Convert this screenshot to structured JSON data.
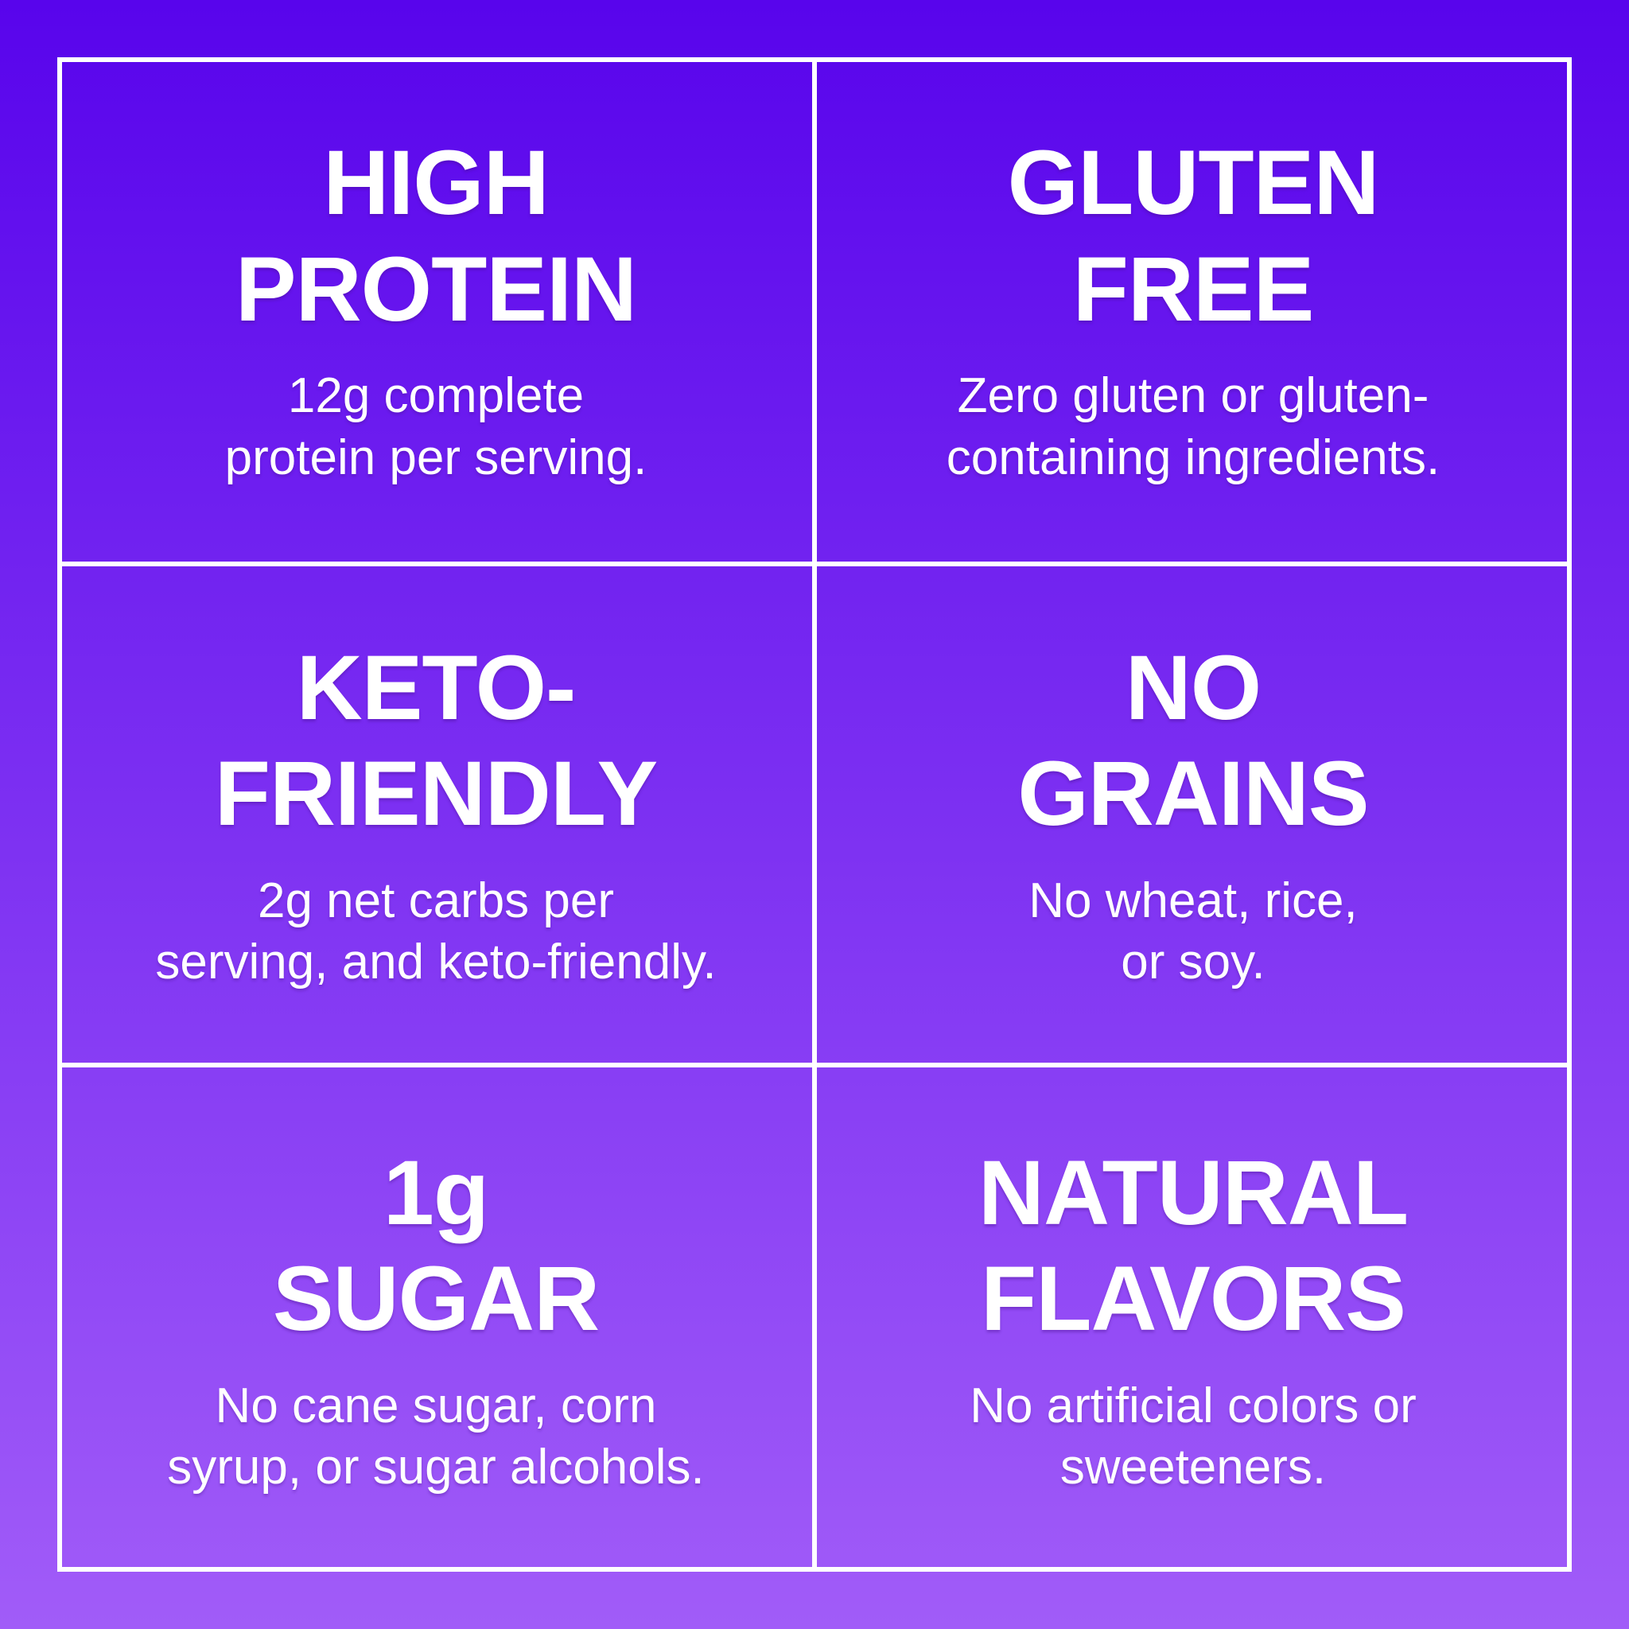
{
  "theme": {
    "gradient_top": "#5804ec",
    "gradient_bottom": "#a15cf8",
    "line_color": "#ffffff",
    "text_color": "#ffffff"
  },
  "cells": [
    {
      "title": "HIGH\nPROTEIN",
      "subtitle": "12g complete\nprotein per serving."
    },
    {
      "title": "GLUTEN\nFREE",
      "subtitle": "Zero gluten or gluten-\ncontaining ingredients."
    },
    {
      "title": "KETO-\nFRIENDLY",
      "subtitle": "2g net carbs per\nserving, and keto-friendly."
    },
    {
      "title": "NO\nGRAINS",
      "subtitle": "No wheat, rice,\nor soy."
    },
    {
      "title": "1g\nSUGAR",
      "subtitle": "No cane sugar, corn\nsyrup, or sugar alcohols."
    },
    {
      "title": "NATURAL\nFLAVORS",
      "subtitle": "No artificial colors or\nsweeteners."
    }
  ]
}
